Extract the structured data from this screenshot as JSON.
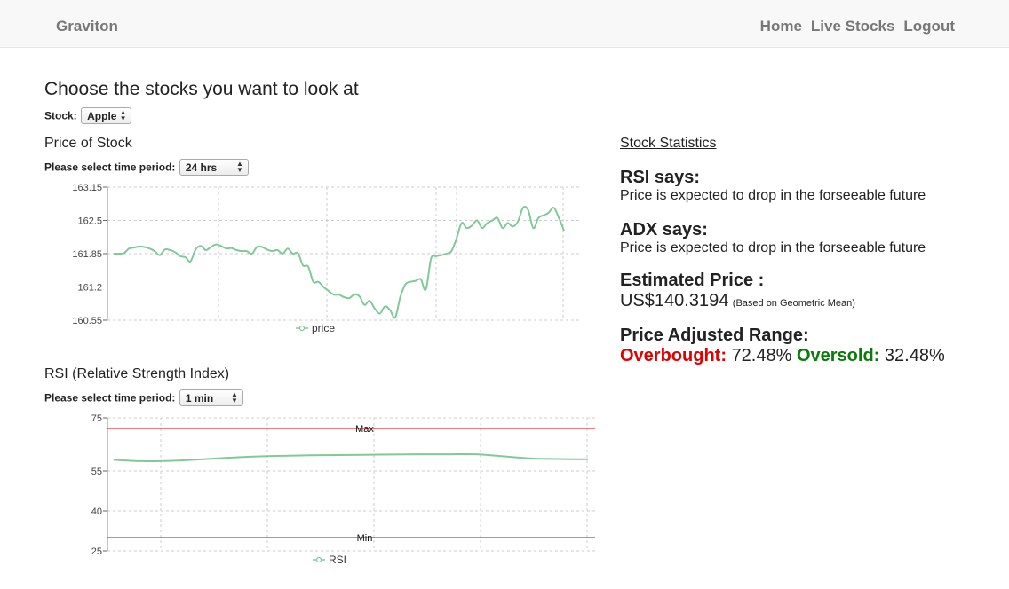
{
  "navbar": {
    "brand": "Graviton",
    "links": [
      "Home",
      "Live Stocks",
      "Logout"
    ]
  },
  "page": {
    "title": "Choose the stocks you want to look at",
    "stock_label": "Stock:",
    "stock_value": "Apple"
  },
  "price_section": {
    "title": "Price of Stock",
    "period_label": "Please select time period:",
    "period_value": "24 hrs"
  },
  "rsi_section": {
    "title": "RSI (Relative Strength Index)",
    "period_label": "Please select time period:",
    "period_value": "1 min"
  },
  "stats": {
    "heading": "Stock Statistics",
    "rsi_heading": "RSI says:",
    "rsi_text": "Price is expected to drop in the forseeable future",
    "adx_heading": "ADX says:",
    "adx_text": "Price is expected to drop in the forseeable future",
    "est_heading": "Estimated Price :",
    "est_value": "US$140.3194",
    "est_note": "(Based on Geometric Mean)",
    "range_heading": "Price Adjusted Range:",
    "overbought_label": "Overbought:",
    "overbought_value": "72.48%",
    "oversold_label": "Oversold:",
    "oversold_value": "32.48%"
  },
  "colors": {
    "series": "#82c99a",
    "threshold": "#e03030",
    "grid": "#cccccc",
    "overbought": "#e00000",
    "oversold": "#0a7a0a"
  },
  "chart_data": [
    {
      "type": "line",
      "title": "",
      "xlabel": "",
      "ylabel": "",
      "ylim": [
        160.55,
        163.15
      ],
      "yticks": [
        "163.15",
        "162.5",
        "161.85",
        "161.2",
        "160.55"
      ],
      "legend": "bottom",
      "grid": true,
      "series": [
        {
          "name": "price",
          "values": [
            161.85,
            161.85,
            161.86,
            161.95,
            161.97,
            161.99,
            161.98,
            161.95,
            161.9,
            161.82,
            161.93,
            161.92,
            161.88,
            161.8,
            161.78,
            161.7,
            161.93,
            162.0,
            161.92,
            161.98,
            162.03,
            162.0,
            161.95,
            161.96,
            161.92,
            161.9,
            161.9,
            161.85,
            161.98,
            161.98,
            161.93,
            161.9,
            161.92,
            161.85,
            161.95,
            161.85,
            161.86,
            161.62,
            161.6,
            161.3,
            161.3,
            161.2,
            161.12,
            161.05,
            161.05,
            161.0,
            160.98,
            161.05,
            161.02,
            160.85,
            160.93,
            160.78,
            160.68,
            160.82,
            160.75,
            160.6,
            161.0,
            161.25,
            161.3,
            161.32,
            161.35,
            161.15,
            161.75,
            161.8,
            161.82,
            161.85,
            161.9,
            162.15,
            162.45,
            162.35,
            162.4,
            162.5,
            162.35,
            162.45,
            162.5,
            162.55,
            162.35,
            162.45,
            162.38,
            162.48,
            162.75,
            162.7,
            162.35,
            162.55,
            162.6,
            162.65,
            162.75,
            162.55,
            162.3
          ],
          "x_tick_count": 5
        }
      ]
    },
    {
      "type": "line",
      "title": "",
      "xlabel": "",
      "ylabel": "",
      "ylim": [
        25,
        75
      ],
      "yticks": [
        "75",
        "55",
        "40",
        "25"
      ],
      "legend": "bottom",
      "grid": true,
      "annotations": [
        {
          "label": "Max",
          "value": 71.0
        },
        {
          "label": "Min",
          "value": 30.0
        }
      ],
      "series": [
        {
          "name": "RSI",
          "values": [
            59.2,
            58.7,
            58.8,
            59.3,
            59.9,
            60.4,
            60.7,
            60.9,
            61.0,
            61.1,
            61.2,
            61.3,
            61.3,
            61.3,
            60.5,
            59.7,
            59.5,
            59.4
          ]
        }
      ]
    }
  ]
}
